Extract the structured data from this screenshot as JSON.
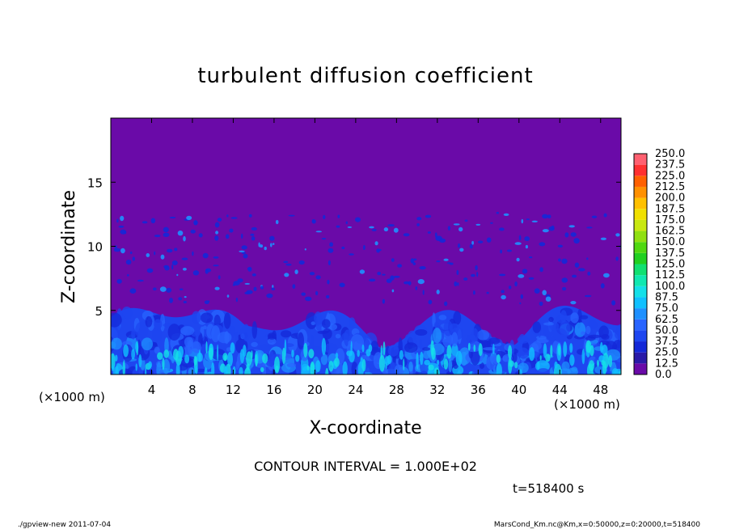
{
  "chart_data": {
    "type": "heatmap",
    "title": "turbulent diffusion coefficient",
    "xlabel": "X-coordinate",
    "ylabel": "Z-coordinate",
    "x_unit_left": "(×1000 m)",
    "x_unit_right": "(×1000 m)",
    "xlim": [
      0,
      50
    ],
    "ylim": [
      0,
      20
    ],
    "xticks": [
      4,
      8,
      12,
      16,
      20,
      24,
      28,
      32,
      36,
      40,
      44,
      48
    ],
    "yticks": [
      5,
      10,
      15
    ],
    "grid": false,
    "colorbar": {
      "levels": [
        "0.0",
        "12.5",
        "25.0",
        "37.5",
        "50.0",
        "62.5",
        "75.0",
        "87.5",
        "100.0",
        "112.5",
        "125.0",
        "137.5",
        "150.0",
        "162.5",
        "175.0",
        "187.5",
        "200.0",
        "212.5",
        "225.0",
        "237.5",
        "250.0"
      ],
      "colors": [
        "#6a0aa8",
        "#2a1aa8",
        "#1428d8",
        "#1e46f0",
        "#2864ff",
        "#1e90ff",
        "#10c0ff",
        "#14e0e8",
        "#10e8b0",
        "#10e070",
        "#20d020",
        "#50d810",
        "#90e010",
        "#c8e810",
        "#f0e000",
        "#ffc000",
        "#ff9000",
        "#ff6000",
        "#ff3030",
        "#ff6070"
      ]
    },
    "contour_interval_text": "CONTOUR INTERVAL = 1.000E+02",
    "time_text": "t=518400 s",
    "footer_left": "./gpview-new  2011-07-04",
    "footer_right": "MarsCond_Km.nc@Km,x=0:50000,z=0:20000,t=518400"
  }
}
